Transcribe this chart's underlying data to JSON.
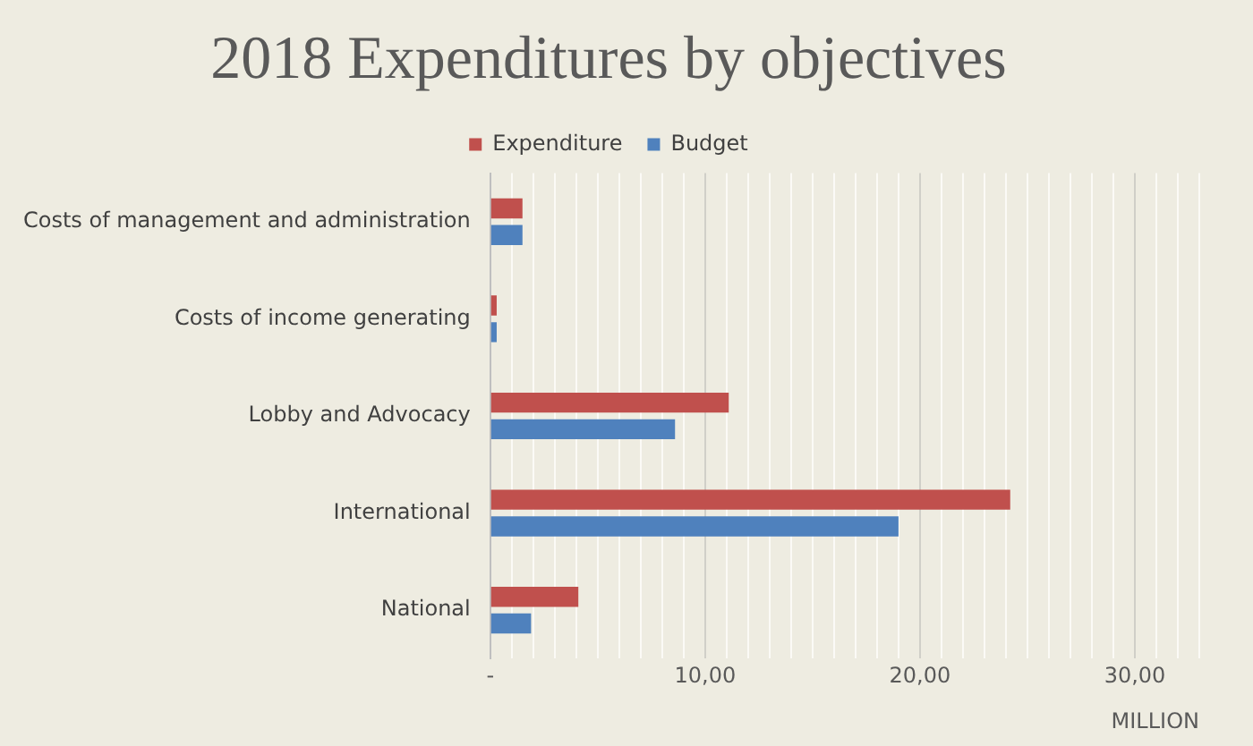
{
  "chart_data": {
    "type": "bar",
    "orientation": "horizontal",
    "title": "2018 Expenditures by objectives",
    "xlabel": "MILLION",
    "categories": [
      "Costs of management and administration",
      "Costs of income generating",
      "Lobby and Advocacy",
      "International",
      "National"
    ],
    "series": [
      {
        "name": "Expenditure",
        "color": "#c0504d",
        "values": [
          1.5,
          0.3,
          11.1,
          24.2,
          4.1
        ]
      },
      {
        "name": "Budget",
        "color": "#4f81bd",
        "values": [
          1.5,
          0.3,
          8.6,
          19.0,
          1.9
        ]
      }
    ],
    "xlim": [
      0,
      33
    ],
    "xticks": [
      {
        "value": 0,
        "label": "-"
      },
      {
        "value": 1,
        "label": null
      },
      {
        "value": 2,
        "label": null
      },
      {
        "value": 3,
        "label": null
      },
      {
        "value": 4,
        "label": null
      },
      {
        "value": 5,
        "label": null
      },
      {
        "value": 6,
        "label": null
      },
      {
        "value": 7,
        "label": null
      },
      {
        "value": 8,
        "label": null
      },
      {
        "value": 9,
        "label": null
      },
      {
        "value": 10,
        "label": "10,00"
      },
      {
        "value": 11,
        "label": null
      },
      {
        "value": 12,
        "label": null
      },
      {
        "value": 13,
        "label": null
      },
      {
        "value": 14,
        "label": null
      },
      {
        "value": 15,
        "label": null
      },
      {
        "value": 16,
        "label": null
      },
      {
        "value": 17,
        "label": null
      },
      {
        "value": 18,
        "label": null
      },
      {
        "value": 19,
        "label": null
      },
      {
        "value": 20,
        "label": "20,00"
      },
      {
        "value": 21,
        "label": null
      },
      {
        "value": 22,
        "label": null
      },
      {
        "value": 23,
        "label": null
      },
      {
        "value": 24,
        "label": null
      },
      {
        "value": 25,
        "label": null
      },
      {
        "value": 26,
        "label": null
      },
      {
        "value": 27,
        "label": null
      },
      {
        "value": 28,
        "label": null
      },
      {
        "value": 29,
        "label": null
      },
      {
        "value": 30,
        "label": "30,00"
      },
      {
        "value": 31,
        "label": null
      },
      {
        "value": 32,
        "label": null
      },
      {
        "value": 33,
        "label": null
      }
    ],
    "grid": "x",
    "legend": "top"
  }
}
